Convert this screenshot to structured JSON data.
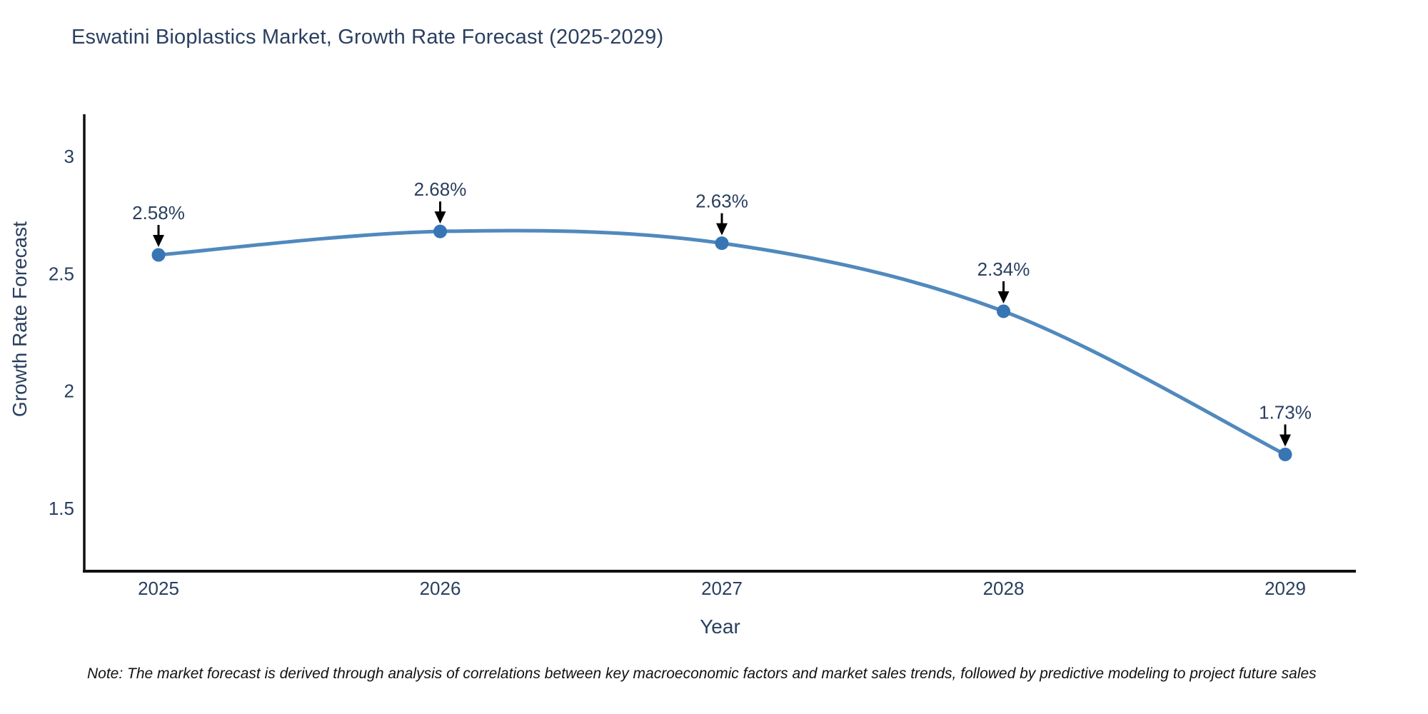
{
  "page": {
    "title": "Eswatini Bioplastics Market, Growth Rate Forecast (2025-2029)",
    "footnote": "Note: The market forecast is derived through analysis of correlations between key macroeconomic factors and market sales trends, followed by predictive modeling to project future sales"
  },
  "chart_data": {
    "type": "line",
    "title": "Eswatini Bioplastics Market, Growth Rate Forecast (2025-2029)",
    "xlabel": "Year",
    "ylabel": "Growth Rate Forecast",
    "categories": [
      2025,
      2026,
      2027,
      2028,
      2029
    ],
    "xtick_labels": [
      "2025",
      "2026",
      "2027",
      "2028",
      "2029"
    ],
    "values": [
      2.58,
      2.68,
      2.63,
      2.34,
      1.73
    ],
    "point_labels": [
      "2.58%",
      "2.68%",
      "2.63%",
      "2.34%",
      "1.73%"
    ],
    "yticks": [
      3,
      2.5,
      2,
      1.5
    ],
    "ytick_labels": [
      "3",
      "2.5",
      "2",
      "1.5"
    ],
    "ylim": [
      1.23,
      3.18
    ],
    "line_shape": "spline",
    "grid": false,
    "legend": "none",
    "unit": "%",
    "colors": {
      "line": "#5089bd",
      "marker": "#3775b5",
      "axis": "#111111",
      "tick_text": "#2a3f5f",
      "annotation_text": "#2a3f5f",
      "annotation_arrow": "#000000"
    }
  }
}
